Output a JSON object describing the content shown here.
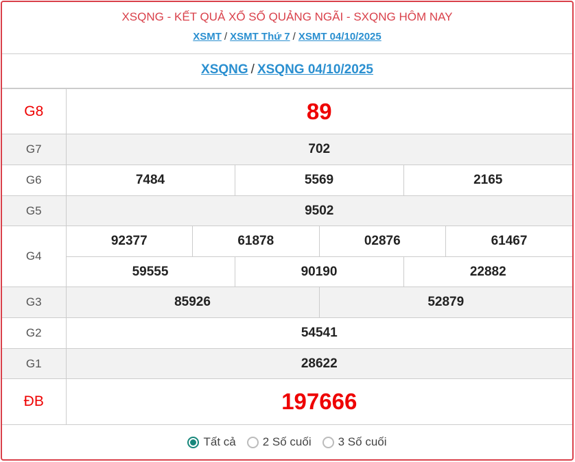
{
  "header": {
    "title": "XSQNG - KẾT QUẢ XỔ SỐ QUẢNG NGÃI - SXQNG HÔM NAY",
    "breadcrumb": [
      "XSMT",
      "XSMT Thứ 7",
      "XSMT 04/10/2025"
    ],
    "subnav": [
      "XSQNG",
      "XSQNG 04/10/2025"
    ],
    "separator": "/"
  },
  "results": {
    "G8": {
      "label": "G8",
      "values": [
        "89"
      ]
    },
    "G7": {
      "label": "G7",
      "values": [
        "702"
      ]
    },
    "G6": {
      "label": "G6",
      "values": [
        "7484",
        "5569",
        "2165"
      ]
    },
    "G5": {
      "label": "G5",
      "values": [
        "9502"
      ]
    },
    "G4": {
      "label": "G4",
      "values": [
        "92377",
        "61878",
        "02876",
        "61467",
        "59555",
        "90190",
        "22882"
      ]
    },
    "G3": {
      "label": "G3",
      "values": [
        "85926",
        "52879"
      ]
    },
    "G2": {
      "label": "G2",
      "values": [
        "54541"
      ]
    },
    "G1": {
      "label": "G1",
      "values": [
        "28622"
      ]
    },
    "DB": {
      "label": "ĐB",
      "values": [
        "197666"
      ]
    }
  },
  "filter": {
    "options": [
      "Tất cả",
      "2 Số cuối",
      "3 Số cuối"
    ],
    "selected": "Tất cả"
  },
  "colors": {
    "accent": "#d9404a",
    "link": "#2a8fd0",
    "prize": "#ee0000",
    "radio": "#17877b"
  }
}
